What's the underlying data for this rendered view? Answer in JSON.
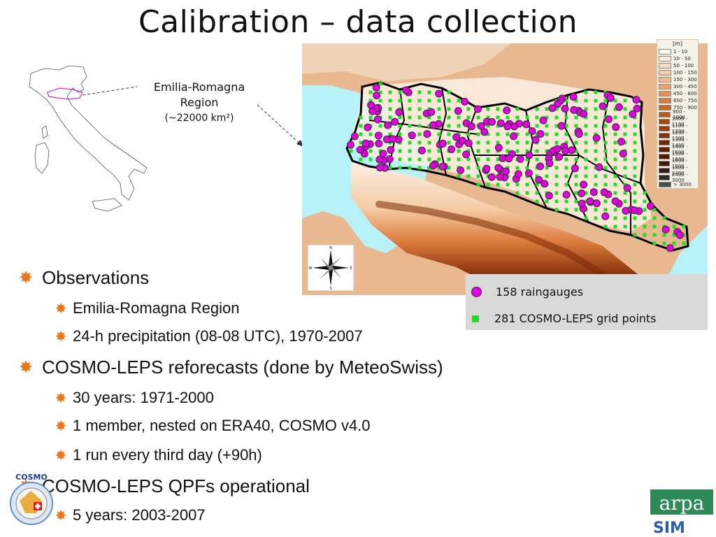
{
  "title": "Calibration – data collection",
  "region_label": {
    "line1": "Emilia-Romagna",
    "line2": "Region",
    "area": "(~22000 km²)"
  },
  "elevation_legend": {
    "unit": "[m]",
    "classes": [
      {
        "label": "1 - 10",
        "color": "#fdf6ec"
      },
      {
        "label": "10 - 50",
        "color": "#fbe9d6"
      },
      {
        "label": "50 - 100",
        "color": "#f9dcc0"
      },
      {
        "label": "100 - 150",
        "color": "#f6cca6"
      },
      {
        "label": "150 - 300",
        "color": "#f3b98a"
      },
      {
        "label": "300 - 450",
        "color": "#eea56d"
      },
      {
        "label": "450 - 600",
        "color": "#e69053"
      },
      {
        "label": "600 - 750",
        "color": "#dc7b3c"
      },
      {
        "label": "750 - 900",
        "color": "#cf6728"
      },
      {
        "label": "900 - 1000",
        "color": "#c0561a"
      },
      {
        "label": "1000 - 1100",
        "color": "#ad4712"
      },
      {
        "label": "1100 - 1200",
        "color": "#9a3b0d"
      },
      {
        "label": "1200 - 1300",
        "color": "#86310a"
      },
      {
        "label": "1300 - 1400",
        "color": "#722808"
      },
      {
        "label": "1400 - 1500",
        "color": "#612207"
      },
      {
        "label": "1500 - 1600",
        "color": "#521d07"
      },
      {
        "label": "1600 - 1800",
        "color": "#451a0a"
      },
      {
        "label": "1800 - 2400",
        "color": "#3a1a10"
      },
      {
        "label": "2400 - 3000",
        "color": "#2e2a2a"
      },
      {
        "label": "> 3000",
        "color": "#4a4a4a"
      }
    ]
  },
  "compass": {
    "n": "N",
    "s": "S",
    "e": "E",
    "w": "W"
  },
  "point_legend": {
    "raingauges": "158 raingauges",
    "grid_points": "281 COSMO-LEPS grid points",
    "raingauge_color": "#e000e0",
    "grid_color": "#22dd22"
  },
  "bullets": {
    "observations": "Observations",
    "obs_region": "Emilia-Romagna Region",
    "obs_precip": "24-h precipitation (08-08 UTC), 1970-2007",
    "reforecasts": "COSMO-LEPS reforecasts (done by MeteoSwiss)",
    "ref_years": "30 years: 1971-2000",
    "ref_member": "1 member, nested on ERA40, COSMO v4.0",
    "ref_run": "1 run every third day (+90h)",
    "qpf": "COSMO-LEPS QPFs operational",
    "qpf_years": "5 years: 2003-2007"
  },
  "logos": {
    "cosmo": "COSMO",
    "arpa": "arpa",
    "sim": "SIM"
  },
  "colors": {
    "bullet_star": "#e8761a",
    "sea": "#b8f2f8",
    "plain": "#fbeee0",
    "boundary": "#000000"
  }
}
